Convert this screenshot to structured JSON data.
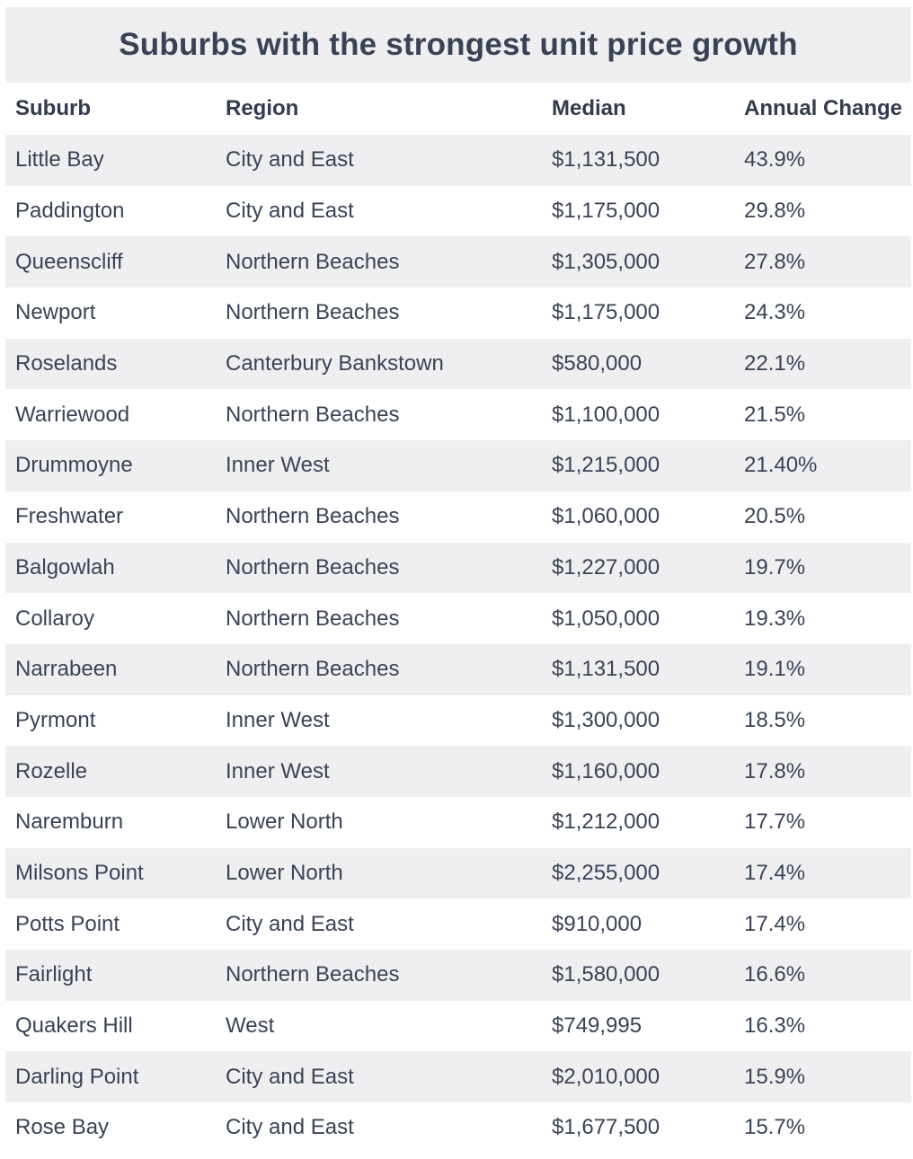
{
  "title": "Suburbs with the strongest unit price growth",
  "columns": [
    "Suburb",
    "Region",
    "Median",
    "Annual Change"
  ],
  "rows": [
    [
      "Little Bay",
      "City and East",
      "$1,131,500",
      "43.9%"
    ],
    [
      "Paddington",
      "City and East",
      "$1,175,000",
      "29.8%"
    ],
    [
      "Queenscliff",
      "Northern Beaches",
      "$1,305,000",
      "27.8%"
    ],
    [
      "Newport",
      "Northern Beaches",
      "$1,175,000",
      "24.3%"
    ],
    [
      "Roselands",
      "Canterbury Bankstown",
      "$580,000",
      "22.1%"
    ],
    [
      "Warriewood",
      "Northern Beaches",
      "$1,100,000",
      "21.5%"
    ],
    [
      "Drummoyne",
      "Inner West",
      "$1,215,000",
      "21.40%"
    ],
    [
      "Freshwater",
      "Northern Beaches",
      "$1,060,000",
      "20.5%"
    ],
    [
      "Balgowlah",
      "Northern Beaches",
      "$1,227,000",
      "19.7%"
    ],
    [
      "Collaroy",
      "Northern Beaches",
      "$1,050,000",
      "19.3%"
    ],
    [
      "Narrabeen",
      "Northern Beaches",
      "$1,131,500",
      "19.1%"
    ],
    [
      "Pyrmont",
      "Inner West",
      "$1,300,000",
      "18.5%"
    ],
    [
      "Rozelle",
      "Inner West",
      "$1,160,000",
      "17.8%"
    ],
    [
      "Naremburn",
      "Lower North",
      "$1,212,000",
      "17.7%"
    ],
    [
      "Milsons Point",
      "Lower North",
      "$2,255,000",
      "17.4%"
    ],
    [
      "Potts Point",
      "City and East",
      "$910,000",
      "17.4%"
    ],
    [
      "Fairlight",
      "Northern Beaches",
      "$1,580,000",
      "16.6%"
    ],
    [
      "Quakers Hill",
      "West",
      "$749,995",
      "16.3%"
    ],
    [
      "Darling Point",
      "City and East",
      "$2,010,000",
      "15.9%"
    ],
    [
      "Rose Bay",
      "City and East",
      "$1,677,500",
      "15.7%"
    ]
  ],
  "colors": {
    "text": "#3a4356",
    "stripe": "#efeff1",
    "background": "#ffffff"
  }
}
